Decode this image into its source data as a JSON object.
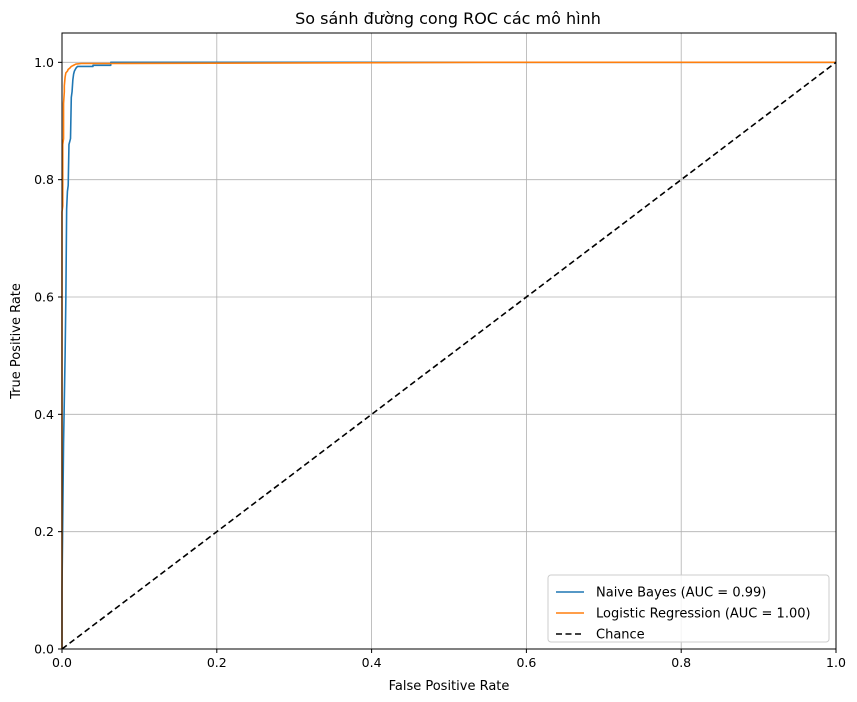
{
  "chart_data": {
    "type": "line",
    "title": "So sánh đường cong ROC các mô hình",
    "xlabel": "False Positive Rate",
    "ylabel": "True Positive Rate",
    "xlim": [
      0.0,
      1.0
    ],
    "ylim": [
      0.0,
      1.05
    ],
    "xticks": [
      0.0,
      0.2,
      0.4,
      0.6,
      0.8,
      1.0
    ],
    "yticks": [
      0.0,
      0.2,
      0.4,
      0.6,
      0.8,
      1.0
    ],
    "xtick_labels": [
      "0.0",
      "0.2",
      "0.4",
      "0.6",
      "0.8",
      "1.0"
    ],
    "ytick_labels": [
      "0.0",
      "0.2",
      "0.4",
      "0.6",
      "0.8",
      "1.0"
    ],
    "grid": true,
    "legend_position": "lower-right",
    "series": [
      {
        "name": "Naive Bayes (AUC = 0.99)",
        "color": "#1f77b4",
        "style": "solid",
        "x": [
          0.0,
          0.0,
          0.002,
          0.004,
          0.005,
          0.006,
          0.007,
          0.008,
          0.009,
          0.01,
          0.011,
          0.012,
          0.013,
          0.014,
          0.015,
          0.016,
          0.018,
          0.02,
          0.025,
          0.04,
          0.04,
          0.063,
          0.063,
          0.546,
          0.546,
          1.0
        ],
        "y": [
          0.0,
          0.1,
          0.35,
          0.5,
          0.6,
          0.75,
          0.78,
          0.79,
          0.86,
          0.865,
          0.87,
          0.94,
          0.95,
          0.97,
          0.98,
          0.985,
          0.99,
          0.993,
          0.993,
          0.993,
          0.995,
          0.995,
          1.0,
          1.0,
          1.0,
          1.0
        ]
      },
      {
        "name": "Logistic Regression (AUC = 1.00)",
        "color": "#ff7f0e",
        "style": "solid",
        "x": [
          0.0,
          0.0,
          0.001,
          0.001,
          0.002,
          0.002,
          0.003,
          0.003,
          0.004,
          0.005,
          0.007,
          0.008,
          0.01,
          0.012,
          0.015,
          0.018,
          0.025,
          0.063,
          0.546,
          1.0
        ],
        "y": [
          0.0,
          0.745,
          0.755,
          0.86,
          0.87,
          0.93,
          0.95,
          0.96,
          0.975,
          0.982,
          0.985,
          0.988,
          0.99,
          0.993,
          0.995,
          0.997,
          0.998,
          0.998,
          1.0,
          1.0
        ]
      },
      {
        "name": "Chance",
        "color": "#000000",
        "style": "dashed",
        "x": [
          0.0,
          1.0
        ],
        "y": [
          0.0,
          1.0
        ]
      }
    ]
  }
}
